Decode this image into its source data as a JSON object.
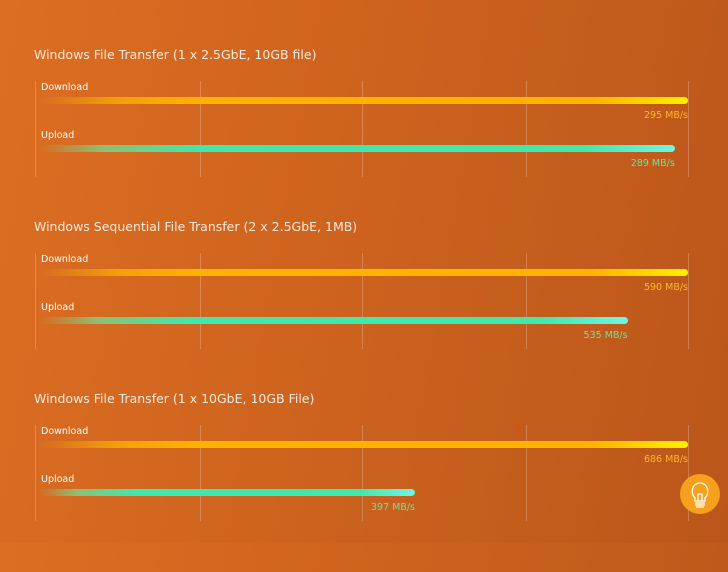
{
  "chart_data": [
    {
      "type": "bar",
      "orientation": "horizontal",
      "title": "Windows File Transfer (1 x 2.5GbE, 10GB file)",
      "unit": "MB/s",
      "series": [
        {
          "name": "Download",
          "value": 295,
          "label": "295 MB/s",
          "color": "#ffb300"
        },
        {
          "name": "Upload",
          "value": 289,
          "label": "289 MB/s",
          "color": "#3fe8ac"
        }
      ]
    },
    {
      "type": "bar",
      "orientation": "horizontal",
      "title": "Windows Sequential File Transfer (2 x 2.5GbE, 1MB)",
      "unit": "MB/s",
      "series": [
        {
          "name": "Download",
          "value": 590,
          "label": "590 MB/s",
          "color": "#ffb300"
        },
        {
          "name": "Upload",
          "value": 535,
          "label": "535 MB/s",
          "color": "#3fe8ac"
        }
      ]
    },
    {
      "type": "bar",
      "orientation": "horizontal",
      "title": "Windows File Transfer (1 x 10GbE, 10GB File)",
      "unit": "MB/s",
      "series": [
        {
          "name": "Download",
          "value": 686,
          "label": "686 MB/s",
          "color": "#ffb300"
        },
        {
          "name": "Upload",
          "value": 397,
          "label": "397 MB/s",
          "color": "#3fe8ac"
        }
      ]
    }
  ],
  "grid": true,
  "help_button": {
    "icon": "lightbulb-icon",
    "color": "#f6a01e"
  }
}
